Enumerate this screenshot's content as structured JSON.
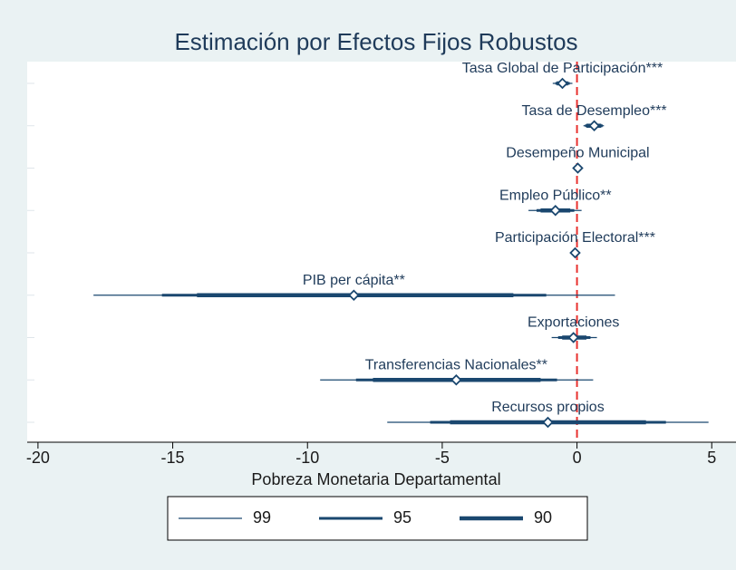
{
  "chart_data": {
    "type": "coefplot",
    "title": "Estimación por Efectos Fijos Robustos",
    "x_label": "Pobreza Monetaria Departamental",
    "categories": [
      "Tasa Global de Participación***",
      "Tasa de Desempleo***",
      "Desempeño Municipal",
      "Empleo Público**",
      "Participación Electoral***",
      "PIB per cápita**",
      "Exportaciones",
      "Transferencias Nacionales**",
      "Recursos propios"
    ],
    "values": [
      -0.54,
      0.64,
      0.03,
      -0.8,
      -0.07,
      -8.28,
      -0.13,
      -4.48,
      -1.08
    ],
    "color": "#1a476f",
    "intervals": [
      {
        "name": "99",
        "width": 1.2,
        "lower": [
          -0.9,
          0.24,
          -0.05,
          -1.8,
          -0.15,
          -17.94,
          -0.94,
          -9.53,
          -7.04
        ],
        "upper": [
          -0.17,
          1.0,
          0.1,
          0.17,
          0.0,
          1.41,
          0.74,
          0.6,
          4.88
        ]
      },
      {
        "name": "95",
        "width": 3,
        "lower": [
          -0.8,
          0.3,
          -0.03,
          -1.5,
          -0.13,
          -15.4,
          -0.7,
          -8.2,
          -5.45
        ],
        "upper": [
          -0.27,
          0.95,
          0.08,
          -0.1,
          -0.02,
          -1.14,
          0.5,
          -0.74,
          3.3
        ]
      },
      {
        "name": "90",
        "width": 4.5,
        "lower": [
          -0.75,
          0.35,
          -0.02,
          -1.35,
          -0.12,
          -14.1,
          -0.55,
          -7.57,
          -4.71
        ],
        "upper": [
          -0.33,
          0.9,
          0.07,
          -0.25,
          -0.03,
          -2.36,
          0.35,
          -1.35,
          2.56
        ]
      }
    ],
    "xline": 0,
    "xline_color": "#e8312f",
    "xlim": [
      -20.4,
      5.9
    ],
    "xticks": [
      -20,
      -15,
      -10,
      -5,
      0,
      5
    ]
  }
}
